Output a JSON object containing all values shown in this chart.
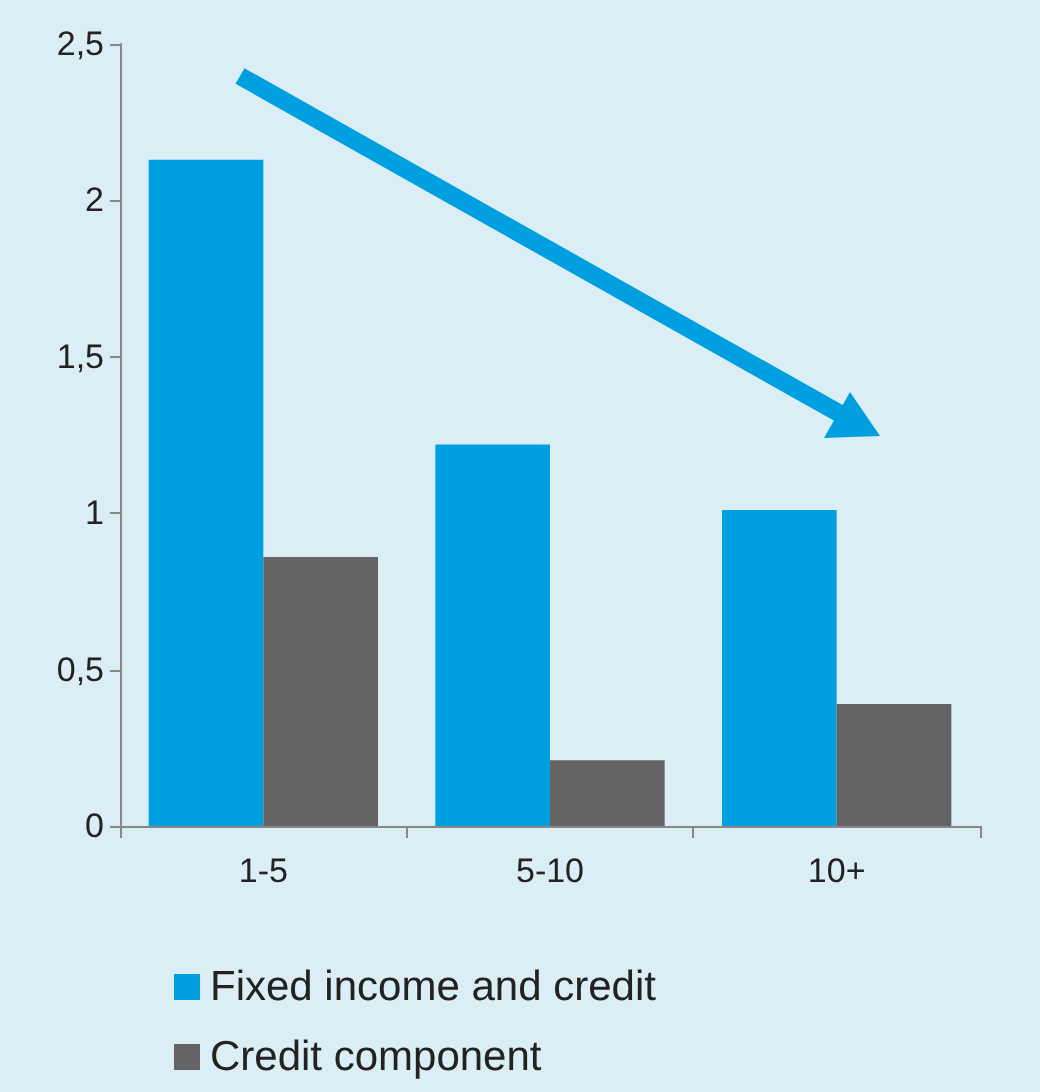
{
  "chart_data": {
    "type": "bar",
    "categories": [
      "1-5",
      "5-10",
      "10+"
    ],
    "series": [
      {
        "name": "Fixed income and credit",
        "color": "#00a0e0",
        "values": [
          2.13,
          1.22,
          1.01
        ]
      },
      {
        "name": "Credit component",
        "color": "#646464",
        "values": [
          0.86,
          0.21,
          0.39
        ]
      }
    ],
    "ylim": [
      0,
      2.5
    ],
    "yticks": [
      0,
      {
        "value": 0.5,
        "label": "0,5"
      },
      1,
      {
        "value": 1.5,
        "label": "1,5"
      },
      2,
      {
        "value": 2.5,
        "label": "2,5"
      }
    ],
    "grid": false,
    "legend": "bottom"
  }
}
